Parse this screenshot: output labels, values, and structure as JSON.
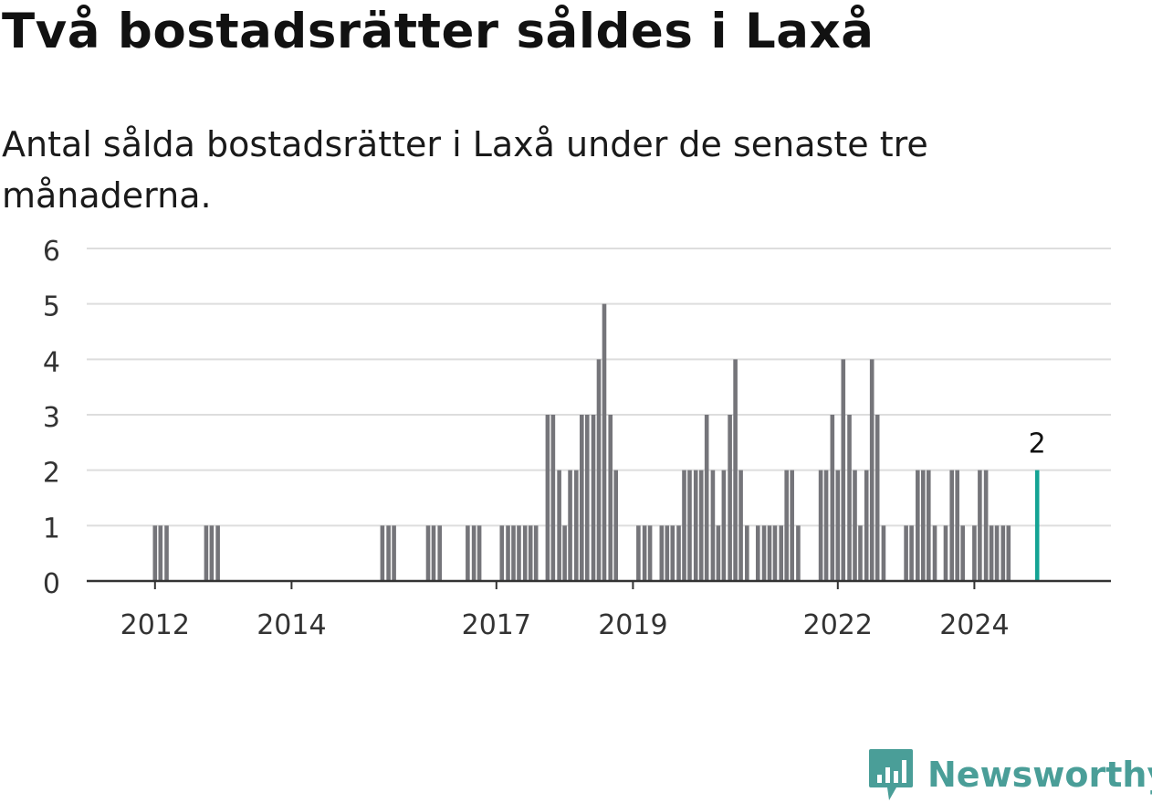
{
  "header": {
    "title": "Två bostadsrätter såldes i Laxå",
    "subtitle": "Antal sålda bostadsrätter i Laxå under de senaste tre månaderna."
  },
  "brand": {
    "name": "Newsworthy",
    "logo_icon": "bar-chart-badge-icon",
    "color": "#4a9e98"
  },
  "colors": {
    "bar": "#75757a",
    "highlight": "#14a394",
    "grid": "#dddddd",
    "axis": "#333333",
    "tick_text": "#333333"
  },
  "chart_data": {
    "type": "bar",
    "title": "Två bostadsrätter såldes i Laxå",
    "subtitle": "Antal sålda bostadsrätter i Laxå under de senaste tre månaderna.",
    "xlabel": "",
    "ylabel": "",
    "ylim": [
      0,
      6
    ],
    "yticks": [
      0,
      1,
      2,
      3,
      4,
      5,
      6
    ],
    "xlim": [
      2011.0,
      2026.0
    ],
    "xticks": [
      {
        "label": "2012",
        "value": 2012.0
      },
      {
        "label": "2014",
        "value": 2014.0
      },
      {
        "label": "2017",
        "value": 2017.0
      },
      {
        "label": "2019",
        "value": 2019.0
      },
      {
        "label": "2022",
        "value": 2022.0
      },
      {
        "label": "2024",
        "value": 2024.0
      }
    ],
    "grid": true,
    "legend": "none",
    "annotation": {
      "text": "2",
      "x": 2024.92,
      "y": 2
    },
    "points": [
      {
        "x": 2012.0,
        "y": 1
      },
      {
        "x": 2012.08,
        "y": 1
      },
      {
        "x": 2012.17,
        "y": 1
      },
      {
        "x": 2012.75,
        "y": 1
      },
      {
        "x": 2012.83,
        "y": 1
      },
      {
        "x": 2012.92,
        "y": 1
      },
      {
        "x": 2015.33,
        "y": 1
      },
      {
        "x": 2015.42,
        "y": 1
      },
      {
        "x": 2015.5,
        "y": 1
      },
      {
        "x": 2016.0,
        "y": 1
      },
      {
        "x": 2016.08,
        "y": 1
      },
      {
        "x": 2016.17,
        "y": 1
      },
      {
        "x": 2016.58,
        "y": 1
      },
      {
        "x": 2016.67,
        "y": 1
      },
      {
        "x": 2016.75,
        "y": 1
      },
      {
        "x": 2017.08,
        "y": 1
      },
      {
        "x": 2017.17,
        "y": 1
      },
      {
        "x": 2017.25,
        "y": 1
      },
      {
        "x": 2017.33,
        "y": 1
      },
      {
        "x": 2017.42,
        "y": 1
      },
      {
        "x": 2017.5,
        "y": 1
      },
      {
        "x": 2017.58,
        "y": 1
      },
      {
        "x": 2017.75,
        "y": 3
      },
      {
        "x": 2017.83,
        "y": 3
      },
      {
        "x": 2017.92,
        "y": 2
      },
      {
        "x": 2018.0,
        "y": 1
      },
      {
        "x": 2018.08,
        "y": 2
      },
      {
        "x": 2018.17,
        "y": 2
      },
      {
        "x": 2018.25,
        "y": 3
      },
      {
        "x": 2018.33,
        "y": 3
      },
      {
        "x": 2018.42,
        "y": 3
      },
      {
        "x": 2018.5,
        "y": 4
      },
      {
        "x": 2018.58,
        "y": 5
      },
      {
        "x": 2018.67,
        "y": 3
      },
      {
        "x": 2018.75,
        "y": 2
      },
      {
        "x": 2019.08,
        "y": 1
      },
      {
        "x": 2019.17,
        "y": 1
      },
      {
        "x": 2019.25,
        "y": 1
      },
      {
        "x": 2019.42,
        "y": 1
      },
      {
        "x": 2019.5,
        "y": 1
      },
      {
        "x": 2019.58,
        "y": 1
      },
      {
        "x": 2019.67,
        "y": 1
      },
      {
        "x": 2019.75,
        "y": 2
      },
      {
        "x": 2019.83,
        "y": 2
      },
      {
        "x": 2019.92,
        "y": 2
      },
      {
        "x": 2020.0,
        "y": 2
      },
      {
        "x": 2020.08,
        "y": 3
      },
      {
        "x": 2020.17,
        "y": 2
      },
      {
        "x": 2020.25,
        "y": 1
      },
      {
        "x": 2020.33,
        "y": 2
      },
      {
        "x": 2020.42,
        "y": 3
      },
      {
        "x": 2020.5,
        "y": 4
      },
      {
        "x": 2020.58,
        "y": 2
      },
      {
        "x": 2020.67,
        "y": 1
      },
      {
        "x": 2020.83,
        "y": 1
      },
      {
        "x": 2020.92,
        "y": 1
      },
      {
        "x": 2021.0,
        "y": 1
      },
      {
        "x": 2021.08,
        "y": 1
      },
      {
        "x": 2021.17,
        "y": 1
      },
      {
        "x": 2021.25,
        "y": 2
      },
      {
        "x": 2021.33,
        "y": 2
      },
      {
        "x": 2021.42,
        "y": 1
      },
      {
        "x": 2021.75,
        "y": 2
      },
      {
        "x": 2021.83,
        "y": 2
      },
      {
        "x": 2021.92,
        "y": 3
      },
      {
        "x": 2022.0,
        "y": 2
      },
      {
        "x": 2022.08,
        "y": 4
      },
      {
        "x": 2022.17,
        "y": 3
      },
      {
        "x": 2022.25,
        "y": 2
      },
      {
        "x": 2022.33,
        "y": 1
      },
      {
        "x": 2022.42,
        "y": 2
      },
      {
        "x": 2022.5,
        "y": 4
      },
      {
        "x": 2022.58,
        "y": 3
      },
      {
        "x": 2022.67,
        "y": 1
      },
      {
        "x": 2023.0,
        "y": 1
      },
      {
        "x": 2023.08,
        "y": 1
      },
      {
        "x": 2023.17,
        "y": 2
      },
      {
        "x": 2023.25,
        "y": 2
      },
      {
        "x": 2023.33,
        "y": 2
      },
      {
        "x": 2023.42,
        "y": 1
      },
      {
        "x": 2023.58,
        "y": 1
      },
      {
        "x": 2023.67,
        "y": 2
      },
      {
        "x": 2023.75,
        "y": 2
      },
      {
        "x": 2023.83,
        "y": 1
      },
      {
        "x": 2024.0,
        "y": 1
      },
      {
        "x": 2024.08,
        "y": 2
      },
      {
        "x": 2024.17,
        "y": 2
      },
      {
        "x": 2024.25,
        "y": 1
      },
      {
        "x": 2024.33,
        "y": 1
      },
      {
        "x": 2024.42,
        "y": 1
      },
      {
        "x": 2024.5,
        "y": 1
      },
      {
        "x": 2024.92,
        "y": 2,
        "highlight": true
      }
    ]
  }
}
